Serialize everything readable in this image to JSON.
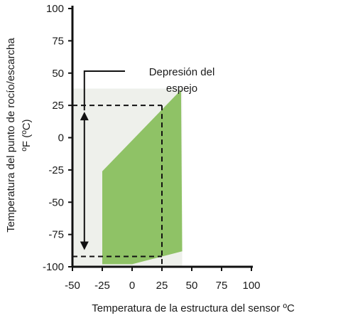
{
  "chart_data": {
    "type": "area",
    "title": "",
    "xlabel": "Temperatura de la estructura del sensor ºC",
    "ylabel_line1": "Temperatura del punto de rocío/escarcha",
    "ylabel_line2": "ºF (ºC)",
    "xlim": [
      -50,
      100
    ],
    "ylim": [
      -100,
      100
    ],
    "x_ticks": [
      -50,
      -25,
      0,
      25,
      50,
      75,
      100
    ],
    "y_ticks": [
      100,
      75,
      50,
      25,
      0,
      -25,
      -50,
      -75,
      -100
    ],
    "x_tick_labels": [
      "-50",
      "-25",
      "0",
      "25",
      "50",
      "75",
      "100"
    ],
    "y_tick_labels": [
      "100",
      "75",
      "50",
      "25",
      "0",
      "-25",
      "-50",
      "-75",
      "-100"
    ],
    "grid": false,
    "background_region": {
      "x_range": [
        -50,
        42
      ],
      "y_range": [
        -100,
        38
      ],
      "color": "#eef0eb"
    },
    "operating_region": {
      "color": "#8fc266",
      "polygon": [
        [
          -25,
          -26
        ],
        [
          41,
          37
        ],
        [
          42,
          -88
        ],
        [
          0,
          -98
        ],
        [
          -25,
          -98
        ]
      ]
    },
    "example_sensor_temp": 25,
    "example_dew_point_high": 25,
    "example_dew_point_low": -92,
    "annotation": {
      "line1": "Depresión del",
      "line2": "espejo"
    },
    "colors": {
      "axis": "#111111",
      "dashed": "#111111",
      "arrow": "#111111"
    }
  }
}
